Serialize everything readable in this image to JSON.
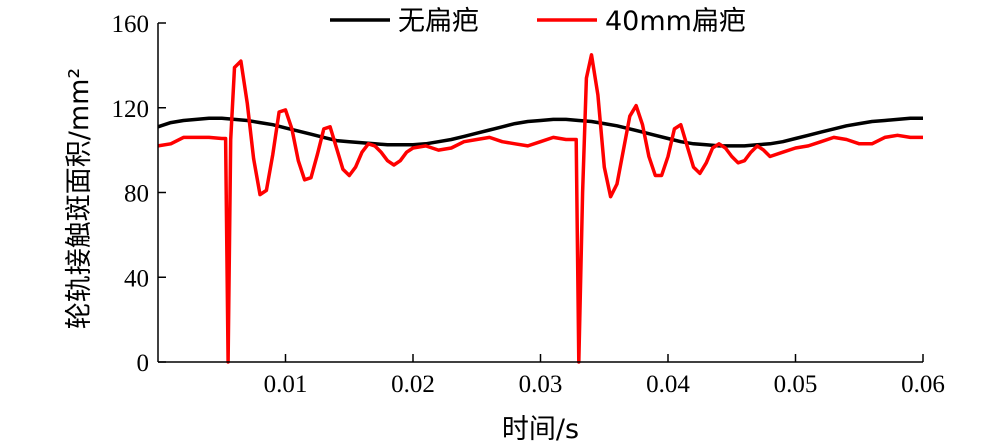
{
  "chart_data": {
    "type": "line",
    "title": "",
    "xlabel": "时间/s",
    "ylabel": "轮轨接触斑面积/mm²",
    "xlim": [
      0.0,
      0.06
    ],
    "ylim": [
      0,
      160
    ],
    "xticks": [
      0.01,
      0.02,
      0.03,
      0.04,
      0.05,
      0.06
    ],
    "xtick_labels": [
      "0.01",
      "0.02",
      "0.03",
      "0.04",
      "0.05",
      "0.06"
    ],
    "yticks": [
      0,
      40,
      80,
      120,
      160
    ],
    "ytick_labels": [
      "0",
      "40",
      "80",
      "120",
      "160"
    ],
    "grid": false,
    "legend_position": "top",
    "series": [
      {
        "name": "无扁疤",
        "color": "#000000",
        "x": [
          0.0,
          0.001,
          0.002,
          0.003,
          0.004,
          0.005,
          0.006,
          0.007,
          0.008,
          0.009,
          0.01,
          0.011,
          0.012,
          0.013,
          0.014,
          0.015,
          0.016,
          0.017,
          0.018,
          0.019,
          0.02,
          0.021,
          0.022,
          0.023,
          0.024,
          0.025,
          0.026,
          0.027,
          0.028,
          0.029,
          0.03,
          0.031,
          0.032,
          0.033,
          0.034,
          0.035,
          0.036,
          0.037,
          0.038,
          0.039,
          0.04,
          0.041,
          0.042,
          0.043,
          0.044,
          0.045,
          0.046,
          0.047,
          0.048,
          0.049,
          0.05,
          0.051,
          0.052,
          0.053,
          0.054,
          0.055,
          0.056,
          0.057,
          0.058,
          0.059,
          0.06
        ],
        "values": [
          111,
          113,
          114,
          114.5,
          115,
          115,
          114.5,
          114,
          113,
          112,
          110.5,
          109,
          107.5,
          106,
          104.5,
          104,
          103.5,
          103,
          102.5,
          102.5,
          102.5,
          103,
          104,
          105,
          106.5,
          108,
          109.5,
          111,
          112.5,
          113.5,
          114,
          114.5,
          114.5,
          114,
          113.5,
          112.5,
          111.5,
          110,
          108.5,
          107,
          105.5,
          104,
          103,
          102.5,
          102,
          102,
          102,
          102.5,
          103,
          104,
          105.5,
          107,
          108.5,
          110,
          111.5,
          112.5,
          113.5,
          114,
          114.5,
          115,
          115
        ]
      },
      {
        "name": "40mm扁疤",
        "color": "#ff0000",
        "x": [
          0.0,
          0.001,
          0.002,
          0.003,
          0.004,
          0.005,
          0.0053,
          0.0055,
          0.0057,
          0.006,
          0.0065,
          0.007,
          0.0075,
          0.008,
          0.0085,
          0.009,
          0.0095,
          0.01,
          0.0105,
          0.011,
          0.0115,
          0.012,
          0.0125,
          0.013,
          0.0135,
          0.014,
          0.0145,
          0.015,
          0.0155,
          0.016,
          0.0165,
          0.017,
          0.0175,
          0.018,
          0.0185,
          0.019,
          0.0195,
          0.02,
          0.021,
          0.022,
          0.023,
          0.024,
          0.025,
          0.026,
          0.027,
          0.028,
          0.029,
          0.03,
          0.031,
          0.032,
          0.0325,
          0.0328,
          0.033,
          0.0333,
          0.0336,
          0.034,
          0.0345,
          0.035,
          0.0355,
          0.036,
          0.0365,
          0.037,
          0.0375,
          0.038,
          0.0385,
          0.039,
          0.0395,
          0.04,
          0.0405,
          0.041,
          0.0415,
          0.042,
          0.0425,
          0.043,
          0.0435,
          0.044,
          0.0445,
          0.045,
          0.0455,
          0.046,
          0.0465,
          0.047,
          0.0475,
          0.048,
          0.049,
          0.05,
          0.051,
          0.052,
          0.053,
          0.054,
          0.055,
          0.056,
          0.057,
          0.058,
          0.059,
          0.06
        ],
        "values": [
          102,
          103,
          106,
          106,
          106,
          105.5,
          105.5,
          0,
          105,
          139,
          142,
          122,
          96,
          79,
          81,
          98,
          118,
          119,
          110,
          95,
          86,
          87,
          98,
          110,
          111,
          101,
          91,
          88,
          92,
          99,
          103,
          102,
          99,
          95,
          93,
          95,
          99,
          101,
          102,
          100,
          101,
          104,
          105,
          106,
          104,
          103,
          102,
          104,
          106,
          105,
          105,
          105,
          0,
          80,
          134,
          145,
          126,
          92,
          78,
          84,
          100,
          116,
          121,
          112,
          97,
          88,
          88,
          97,
          110,
          112,
          102,
          92,
          89,
          94,
          101,
          103,
          101,
          97,
          94,
          95,
          99,
          102,
          100,
          97,
          99,
          101,
          102,
          104,
          106,
          105,
          103,
          103,
          106,
          107,
          106,
          106
        ]
      }
    ]
  }
}
